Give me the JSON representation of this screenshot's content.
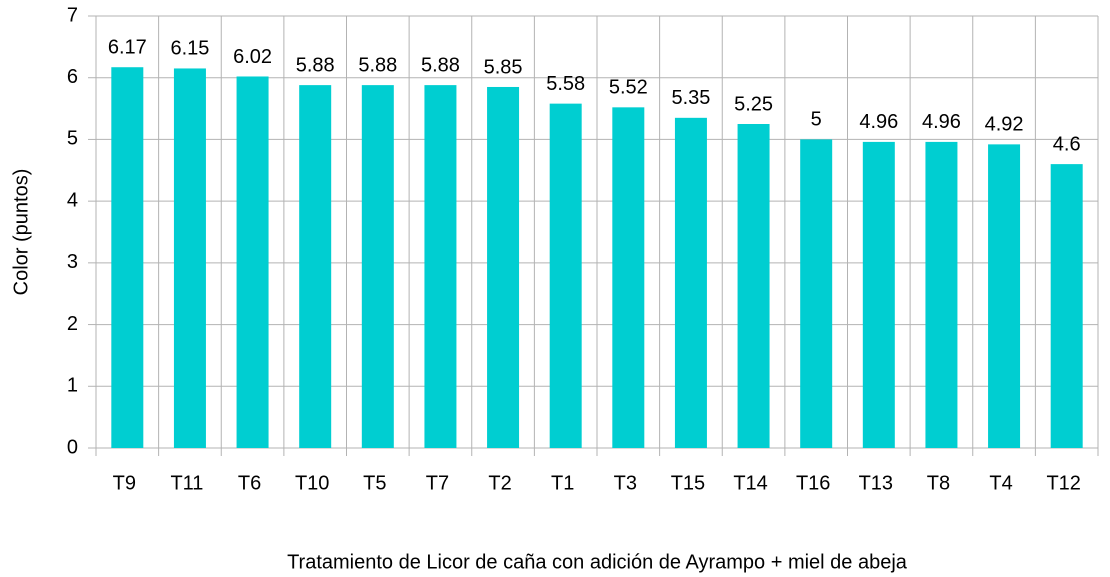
{
  "chart_data": {
    "type": "bar",
    "x_label": "Tratamiento de Licor de caña con adición de Ayrampo + miel de abeja",
    "y_label": "Color (puntos)",
    "categories": [
      "T9",
      "T11",
      "T6",
      "T10",
      "T5",
      "T7",
      "T2",
      "T1",
      "T3",
      "T15",
      "T14",
      "T16",
      "T13",
      "T8",
      "T4",
      "T12"
    ],
    "values": [
      6.17,
      6.15,
      6.02,
      5.88,
      5.88,
      5.88,
      5.85,
      5.58,
      5.52,
      5.35,
      5.25,
      5,
      4.96,
      4.96,
      4.92,
      4.6
    ],
    "color": "#00ced1",
    "ylim": [
      0,
      7
    ],
    "yticks": [
      0,
      1,
      2,
      3,
      4,
      5,
      6,
      7
    ],
    "grid": true
  }
}
